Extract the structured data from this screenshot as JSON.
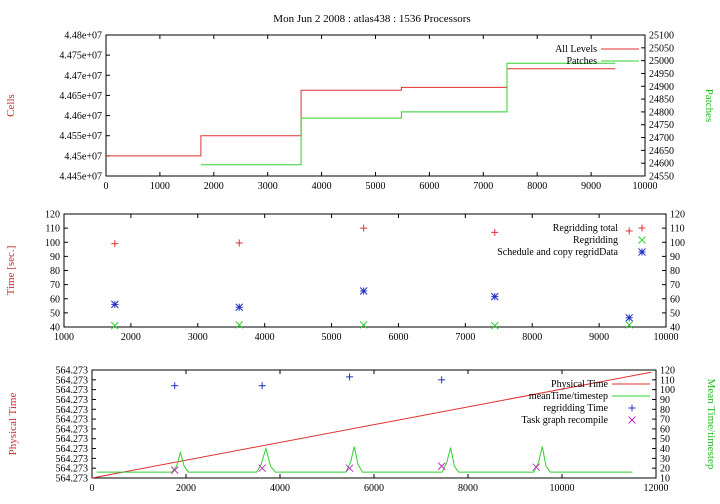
{
  "title": "Mon Jun 2 2008 : atlas438 : 1536 Processors",
  "colors": {
    "red": "#e03030",
    "green": "#30d030",
    "blue": "#2030c0",
    "magenta": "#c030c0"
  },
  "chart_data": [
    {
      "type": "line",
      "ylabel": "Cells",
      "y2label": "Patches",
      "xlim": [
        0,
        10000
      ],
      "ylim": [
        44450000,
        44800000
      ],
      "y2lim": [
        24550,
        25100
      ],
      "xticks": [
        "0",
        "1000",
        "2000",
        "3000",
        "4000",
        "5000",
        "6000",
        "7000",
        "8000",
        "9000",
        "10000"
      ],
      "yticks": [
        "4.445e+07",
        "4.45e+07",
        "4.455e+07",
        "4.46e+07",
        "4.465e+07",
        "4.47e+07",
        "4.475e+07",
        "4.48e+07"
      ],
      "y2ticks": [
        "24550",
        "24600",
        "24650",
        "24700",
        "24750",
        "24800",
        "24850",
        "24900",
        "24950",
        "25000",
        "25050",
        "25100"
      ],
      "legend_position": "top-right",
      "series": [
        {
          "name": "All Levels",
          "axis": "y",
          "step": true,
          "points": [
            [
              0,
              44500000
            ],
            [
              1760,
              44500000
            ],
            [
              1760,
              44550000
            ],
            [
              3620,
              44550000
            ],
            [
              3620,
              44663000
            ],
            [
              5480,
              44663000
            ],
            [
              5480,
              44670000
            ],
            [
              7440,
              44670000
            ],
            [
              7440,
              44716000
            ],
            [
              9450,
              44716000
            ]
          ]
        },
        {
          "name": "Patches",
          "axis": "y2",
          "step": true,
          "points": [
            [
              1760,
              24594
            ],
            [
              3620,
              24594
            ],
            [
              3620,
              24776
            ],
            [
              5480,
              24776
            ],
            [
              5480,
              24800
            ],
            [
              7440,
              24800
            ],
            [
              7440,
              24990
            ],
            [
              9450,
              24990
            ]
          ]
        }
      ]
    },
    {
      "type": "scatter",
      "ylabel": "Time [sec.]",
      "xlim": [
        1000,
        10000
      ],
      "ylim": [
        40,
        120
      ],
      "xticks": [
        "1000",
        "2000",
        "3000",
        "4000",
        "5000",
        "6000",
        "7000",
        "8000",
        "9000",
        "10000"
      ],
      "yticks": [
        "40",
        "50",
        "60",
        "70",
        "80",
        "90",
        "100",
        "110",
        "120"
      ],
      "y2ticks": [
        "40",
        "50",
        "60",
        "70",
        "80",
        "90",
        "100",
        "110",
        "120"
      ],
      "legend_position": "top-right",
      "series": [
        {
          "name": "Regridding total",
          "marker": "+",
          "points": [
            [
              1760,
              99
            ],
            [
              3620,
              99.5
            ],
            [
              5480,
              110
            ],
            [
              7440,
              107
            ],
            [
              9450,
              108
            ]
          ]
        },
        {
          "name": "Regridding",
          "marker": "x",
          "points": [
            [
              1760,
              41
            ],
            [
              3620,
              41.5
            ],
            [
              5480,
              41.5
            ],
            [
              7440,
              41
            ],
            [
              9450,
              41.5
            ]
          ]
        },
        {
          "name": "Schedule and copy regridData",
          "marker": "*",
          "points": [
            [
              1760,
              56
            ],
            [
              3620,
              54
            ],
            [
              5480,
              65.5
            ],
            [
              7440,
              61.5
            ],
            [
              9450,
              46.5
            ]
          ]
        }
      ]
    },
    {
      "type": "line",
      "ylabel": "Physical Time",
      "y2label": "Mean Time/timestep",
      "xlim": [
        0,
        12000
      ],
      "ylim": [
        0,
        1
      ],
      "y2lim": [
        10,
        120
      ],
      "xticks": [
        "0",
        "2000",
        "4000",
        "6000",
        "8000",
        "10000",
        "12000"
      ],
      "yticks": [
        "564.273",
        "564.273",
        "564.273",
        "564.273",
        "564.273",
        "564.273",
        "564.273",
        "564.273",
        "564.273",
        "564.273",
        "564.273",
        "564.273"
      ],
      "y2ticks": [
        "10",
        "20",
        "30",
        "40",
        "50",
        "60",
        "70",
        "80",
        "90",
        "100",
        "110",
        "120"
      ],
      "legend_position": "top-right",
      "series": [
        {
          "name": "Physical Time",
          "axis": "y",
          "points": [
            [
              0,
              0
            ],
            [
              11900,
              0.98
            ]
          ]
        },
        {
          "name": "meanTime/timestep",
          "axis": "y2",
          "points": [
            [
              100,
              16
            ],
            [
              1700,
              16
            ],
            [
              1800,
              22
            ],
            [
              1880,
              36
            ],
            [
              1960,
              22
            ],
            [
              2050,
              16
            ],
            [
              3500,
              16
            ],
            [
              3600,
              24
            ],
            [
              3700,
              40
            ],
            [
              3800,
              22
            ],
            [
              3900,
              16
            ],
            [
              5400,
              16
            ],
            [
              5500,
              26
            ],
            [
              5580,
              42
            ],
            [
              5660,
              24
            ],
            [
              5750,
              16
            ],
            [
              7450,
              16
            ],
            [
              7550,
              26
            ],
            [
              7630,
              41
            ],
            [
              7710,
              22
            ],
            [
              7800,
              16
            ],
            [
              9400,
              16
            ],
            [
              9500,
              26
            ],
            [
              9580,
              42
            ],
            [
              9660,
              22
            ],
            [
              9750,
              16
            ],
            [
              11500,
              16
            ]
          ]
        },
        {
          "name": "regridding Time",
          "axis": "y2",
          "marker": "+",
          "points": [
            [
              1760,
              104
            ],
            [
              3620,
              104
            ],
            [
              5480,
              113
            ],
            [
              7440,
              110
            ]
          ]
        },
        {
          "name": "Task graph recompile",
          "axis": "y2",
          "marker": "x",
          "points": [
            [
              1760,
              18
            ],
            [
              3620,
              20
            ],
            [
              5480,
              20
            ],
            [
              7440,
              22
            ],
            [
              9450,
              21
            ]
          ]
        }
      ]
    }
  ]
}
